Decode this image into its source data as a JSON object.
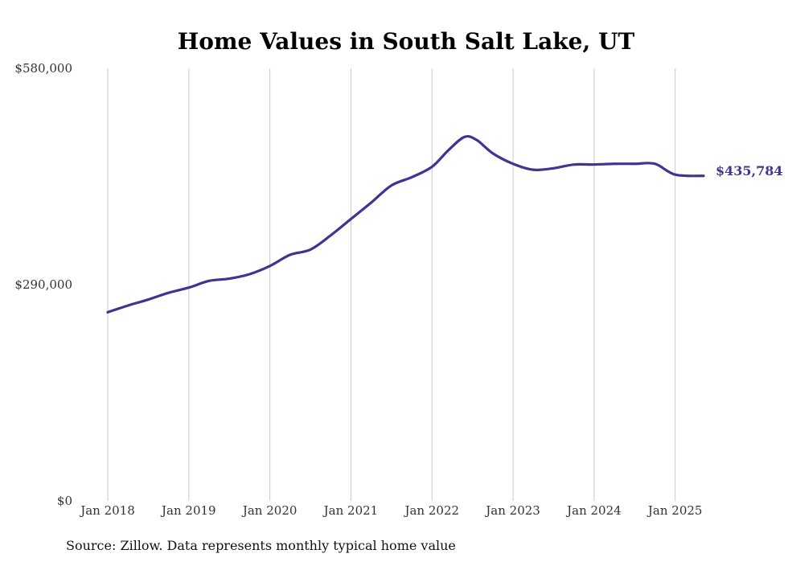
{
  "chart_data": {
    "type": "line",
    "title": "Home Values in South Salt Lake, UT",
    "source": "Source: Zillow. Data represents monthly typical home value",
    "xlabel": "",
    "ylabel": "",
    "y_ticks": [
      {
        "value": 580000,
        "label": "$580,000"
      },
      {
        "value": 290000,
        "label": "$290,000"
      },
      {
        "value": 0,
        "label": "$0"
      }
    ],
    "ylim": [
      0,
      580000
    ],
    "x_ticks": [
      {
        "value": 2018,
        "label": "Jan 2018"
      },
      {
        "value": 2019,
        "label": "Jan 2019"
      },
      {
        "value": 2020,
        "label": "Jan 2020"
      },
      {
        "value": 2021,
        "label": "Jan 2021"
      },
      {
        "value": 2022,
        "label": "Jan 2022"
      },
      {
        "value": 2023,
        "label": "Jan 2023"
      },
      {
        "value": 2024,
        "label": "Jan 2024"
      },
      {
        "value": 2025,
        "label": "Jan 2025"
      }
    ],
    "grid": "vertical",
    "line_color": "#3f3591",
    "end_label": "$435,784",
    "series": [
      {
        "name": "",
        "x": [
          2018.0,
          2018.25,
          2018.5,
          2018.75,
          2019.0,
          2019.25,
          2019.5,
          2019.75,
          2020.0,
          2020.25,
          2020.5,
          2020.75,
          2021.0,
          2021.25,
          2021.5,
          2021.75,
          2022.0,
          2022.2,
          2022.4,
          2022.55,
          2022.75,
          2023.0,
          2023.25,
          2023.5,
          2023.75,
          2024.0,
          2024.25,
          2024.5,
          2024.75,
          2025.0,
          2025.35
        ],
        "y": [
          253000,
          262000,
          270000,
          279000,
          286000,
          295000,
          298000,
          304000,
          315000,
          330000,
          337000,
          356000,
          378000,
          400000,
          423000,
          434000,
          448000,
          470000,
          488000,
          484000,
          466000,
          452000,
          444000,
          446000,
          451000,
          451000,
          452000,
          452000,
          452000,
          437500,
          435784
        ]
      }
    ]
  }
}
